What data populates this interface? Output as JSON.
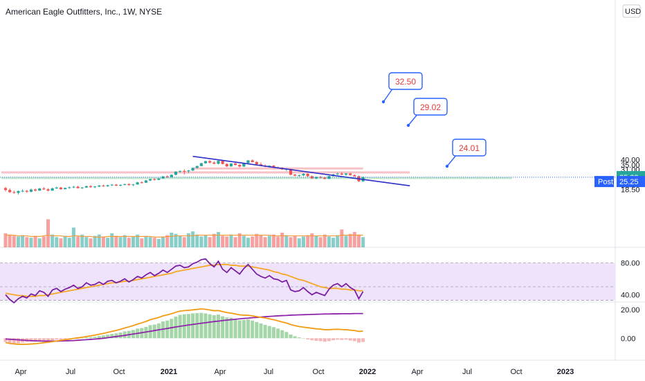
{
  "header": {
    "symbol_title": "American Eagle Outfitters, Inc., 1W, NYSE",
    "currency": "USD"
  },
  "price_axis": {
    "ticks": [
      {
        "value": 40.0,
        "label": "40.00"
      },
      {
        "value": 35.0,
        "label": "35.00"
      },
      {
        "value": 31.0,
        "label": "31.00"
      },
      {
        "value": 27.0,
        "label": "27.00"
      },
      {
        "value": 21.0,
        "label": "21.00"
      },
      {
        "value": 18.5,
        "label": "18.50"
      }
    ]
  },
  "rsi_axis": {
    "ticks": [
      {
        "value": 80,
        "label": "80.00"
      },
      {
        "value": 40,
        "label": "40.00"
      }
    ]
  },
  "macd_axis": {
    "ticks": [
      {
        "value": 20,
        "label": "20.00"
      },
      {
        "value": 0,
        "label": "0.00"
      }
    ]
  },
  "time_axis": {
    "labels": [
      {
        "label": "Apr",
        "bold": false
      },
      {
        "label": "Jul",
        "bold": false
      },
      {
        "label": "Oct",
        "bold": false
      },
      {
        "label": "2021",
        "bold": true
      },
      {
        "label": "Apr",
        "bold": false
      },
      {
        "label": "Jul",
        "bold": false
      },
      {
        "label": "Oct",
        "bold": false
      },
      {
        "label": "2022",
        "bold": true
      },
      {
        "label": "Apr",
        "bold": false
      },
      {
        "label": "Jul",
        "bold": false
      },
      {
        "label": "Oct",
        "bold": false
      },
      {
        "label": "2023",
        "bold": true
      }
    ]
  },
  "last_price": {
    "value": 25.32,
    "label": "25.32",
    "color": "#26a69a"
  },
  "post_market": {
    "tag": "Post",
    "value": 25.25,
    "label": "25.25",
    "color": "#2962ff"
  },
  "callouts": [
    {
      "label": "32.50",
      "value": 32.5
    },
    {
      "label": "29.02",
      "value": 29.02
    },
    {
      "label": "24.01",
      "value": 24.01
    }
  ],
  "colors": {
    "up": "#26a69a",
    "down": "#ef5350",
    "trendline": "#2d2dc8",
    "resistance_zone": "#f7b6be",
    "support_zone": "#b9e4c3",
    "volume_ma": "#f59c3c",
    "rsi_line": "#7b1fa2",
    "rsi_ma": "#f5a623",
    "rsi_band": "#efe3fb",
    "macd_line": "#f29b12",
    "signal_line": "#8e24aa",
    "hist_pos": "#a5d6a7",
    "hist_neg": "#f4b6b6",
    "callout_text": "#e53935",
    "callout_border": "#2962ff"
  },
  "chart_data": {
    "type": "candlestick",
    "interval": "1W",
    "price_range": [
      16.8,
      44.5
    ],
    "candles": [
      {
        "o": 19.1,
        "h": 19.8,
        "l": 17.6,
        "c": 18.2
      },
      {
        "o": 18.2,
        "h": 19.0,
        "l": 16.9,
        "c": 17.2
      },
      {
        "o": 17.2,
        "h": 17.9,
        "l": 16.5,
        "c": 16.9
      },
      {
        "o": 16.9,
        "h": 18.0,
        "l": 16.2,
        "c": 17.7
      },
      {
        "o": 17.7,
        "h": 18.5,
        "l": 17.2,
        "c": 17.8
      },
      {
        "o": 17.8,
        "h": 18.2,
        "l": 16.9,
        "c": 17.4
      },
      {
        "o": 17.4,
        "h": 18.8,
        "l": 17.1,
        "c": 18.4
      },
      {
        "o": 18.4,
        "h": 18.9,
        "l": 17.5,
        "c": 17.9
      },
      {
        "o": 17.9,
        "h": 19.2,
        "l": 17.8,
        "c": 18.9
      },
      {
        "o": 18.9,
        "h": 19.6,
        "l": 18.2,
        "c": 18.5
      },
      {
        "o": 18.5,
        "h": 19.1,
        "l": 17.6,
        "c": 17.9
      },
      {
        "o": 17.9,
        "h": 19.3,
        "l": 17.8,
        "c": 19.0
      },
      {
        "o": 19.0,
        "h": 19.8,
        "l": 18.7,
        "c": 19.4
      },
      {
        "o": 19.4,
        "h": 19.7,
        "l": 18.3,
        "c": 18.6
      },
      {
        "o": 18.6,
        "h": 19.4,
        "l": 18.4,
        "c": 19.2
      },
      {
        "o": 19.2,
        "h": 19.9,
        "l": 18.8,
        "c": 19.5
      },
      {
        "o": 19.5,
        "h": 20.2,
        "l": 19.1,
        "c": 19.8
      },
      {
        "o": 19.8,
        "h": 20.3,
        "l": 18.9,
        "c": 19.1
      },
      {
        "o": 19.1,
        "h": 19.7,
        "l": 18.7,
        "c": 19.4
      },
      {
        "o": 19.4,
        "h": 20.4,
        "l": 19.2,
        "c": 20.1
      },
      {
        "o": 20.1,
        "h": 20.6,
        "l": 19.3,
        "c": 19.6
      },
      {
        "o": 19.6,
        "h": 20.2,
        "l": 19.1,
        "c": 19.9
      },
      {
        "o": 19.9,
        "h": 20.7,
        "l": 19.6,
        "c": 20.4
      },
      {
        "o": 20.4,
        "h": 20.9,
        "l": 19.8,
        "c": 20.1
      },
      {
        "o": 20.1,
        "h": 20.8,
        "l": 19.7,
        "c": 20.6
      },
      {
        "o": 20.6,
        "h": 21.2,
        "l": 20.2,
        "c": 20.9
      },
      {
        "o": 20.9,
        "h": 21.3,
        "l": 20.1,
        "c": 20.4
      },
      {
        "o": 20.4,
        "h": 21.0,
        "l": 20.0,
        "c": 20.8
      },
      {
        "o": 20.8,
        "h": 21.4,
        "l": 20.5,
        "c": 21.2
      },
      {
        "o": 21.2,
        "h": 21.6,
        "l": 20.3,
        "c": 20.7
      },
      {
        "o": 20.7,
        "h": 21.3,
        "l": 20.2,
        "c": 21.0
      },
      {
        "o": 21.0,
        "h": 22.5,
        "l": 20.8,
        "c": 22.2
      },
      {
        "o": 22.2,
        "h": 22.8,
        "l": 21.6,
        "c": 22.0
      },
      {
        "o": 22.0,
        "h": 23.6,
        "l": 21.8,
        "c": 23.3
      },
      {
        "o": 23.3,
        "h": 24.4,
        "l": 22.9,
        "c": 24.1
      },
      {
        "o": 24.1,
        "h": 24.7,
        "l": 23.3,
        "c": 23.7
      },
      {
        "o": 23.7,
        "h": 24.8,
        "l": 23.5,
        "c": 24.6
      },
      {
        "o": 24.6,
        "h": 26.2,
        "l": 24.3,
        "c": 25.9
      },
      {
        "o": 25.9,
        "h": 26.5,
        "l": 25.0,
        "c": 25.5
      },
      {
        "o": 25.5,
        "h": 27.3,
        "l": 25.2,
        "c": 27.0
      },
      {
        "o": 27.0,
        "h": 29.6,
        "l": 26.7,
        "c": 29.3
      },
      {
        "o": 29.3,
        "h": 30.3,
        "l": 28.4,
        "c": 29.8
      },
      {
        "o": 29.8,
        "h": 31.0,
        "l": 27.3,
        "c": 29.6
      },
      {
        "o": 29.6,
        "h": 30.6,
        "l": 28.2,
        "c": 30.2
      },
      {
        "o": 30.2,
        "h": 32.6,
        "l": 29.8,
        "c": 32.3
      },
      {
        "o": 32.3,
        "h": 34.2,
        "l": 31.8,
        "c": 33.9
      },
      {
        "o": 33.9,
        "h": 36.8,
        "l": 33.6,
        "c": 36.5
      },
      {
        "o": 36.5,
        "h": 38.9,
        "l": 35.9,
        "c": 38.5
      },
      {
        "o": 38.5,
        "h": 39.6,
        "l": 36.3,
        "c": 37.1
      },
      {
        "o": 37.1,
        "h": 38.4,
        "l": 35.6,
        "c": 36.0
      },
      {
        "o": 36.0,
        "h": 39.2,
        "l": 35.4,
        "c": 38.8
      },
      {
        "o": 38.8,
        "h": 39.4,
        "l": 35.3,
        "c": 35.8
      },
      {
        "o": 35.8,
        "h": 36.4,
        "l": 33.1,
        "c": 33.6
      },
      {
        "o": 33.6,
        "h": 36.6,
        "l": 33.3,
        "c": 36.2
      },
      {
        "o": 36.2,
        "h": 37.4,
        "l": 34.4,
        "c": 34.9
      },
      {
        "o": 34.9,
        "h": 35.7,
        "l": 32.8,
        "c": 33.5
      },
      {
        "o": 33.5,
        "h": 37.0,
        "l": 33.2,
        "c": 36.7
      },
      {
        "o": 36.7,
        "h": 39.6,
        "l": 36.3,
        "c": 39.3
      },
      {
        "o": 39.3,
        "h": 40.2,
        "l": 37.2,
        "c": 37.6
      },
      {
        "o": 37.6,
        "h": 38.6,
        "l": 35.0,
        "c": 35.5
      },
      {
        "o": 35.5,
        "h": 37.2,
        "l": 33.7,
        "c": 34.1
      },
      {
        "o": 34.1,
        "h": 35.4,
        "l": 32.9,
        "c": 33.4
      },
      {
        "o": 33.4,
        "h": 34.6,
        "l": 32.6,
        "c": 34.2
      },
      {
        "o": 34.2,
        "h": 34.8,
        "l": 32.1,
        "c": 32.7
      },
      {
        "o": 32.7,
        "h": 33.4,
        "l": 31.9,
        "c": 32.4
      },
      {
        "o": 32.4,
        "h": 32.9,
        "l": 30.6,
        "c": 31.1
      },
      {
        "o": 31.1,
        "h": 31.8,
        "l": 29.6,
        "c": 31.4
      },
      {
        "o": 31.4,
        "h": 31.6,
        "l": 26.6,
        "c": 27.1
      },
      {
        "o": 27.1,
        "h": 27.6,
        "l": 26.0,
        "c": 26.4
      },
      {
        "o": 26.4,
        "h": 27.1,
        "l": 25.8,
        "c": 26.6
      },
      {
        "o": 26.6,
        "h": 28.1,
        "l": 26.1,
        "c": 27.7
      },
      {
        "o": 27.7,
        "h": 28.2,
        "l": 25.7,
        "c": 26.0
      },
      {
        "o": 26.0,
        "h": 26.5,
        "l": 24.2,
        "c": 24.6
      },
      {
        "o": 24.6,
        "h": 25.9,
        "l": 24.1,
        "c": 25.5
      },
      {
        "o": 25.5,
        "h": 26.1,
        "l": 24.6,
        "c": 25.0
      },
      {
        "o": 25.0,
        "h": 25.4,
        "l": 24.0,
        "c": 24.3
      },
      {
        "o": 24.3,
        "h": 26.4,
        "l": 24.1,
        "c": 26.1
      },
      {
        "o": 26.1,
        "h": 27.6,
        "l": 25.8,
        "c": 27.3
      },
      {
        "o": 27.3,
        "h": 28.5,
        "l": 26.9,
        "c": 27.8
      },
      {
        "o": 27.8,
        "h": 28.9,
        "l": 26.8,
        "c": 27.1
      },
      {
        "o": 27.1,
        "h": 28.2,
        "l": 26.3,
        "c": 27.9
      },
      {
        "o": 27.9,
        "h": 28.4,
        "l": 26.4,
        "c": 26.8
      },
      {
        "o": 26.8,
        "h": 27.3,
        "l": 25.6,
        "c": 26.0
      },
      {
        "o": 26.0,
        "h": 26.5,
        "l": 22.4,
        "c": 22.8
      },
      {
        "o": 22.8,
        "h": 25.8,
        "l": 22.5,
        "c": 25.32
      }
    ],
    "volume_range": [
      0,
      100
    ],
    "volumes": [
      22,
      20,
      18,
      17,
      19,
      16,
      15,
      18,
      14,
      17,
      44,
      20,
      16,
      14,
      18,
      15,
      31,
      17,
      20,
      16,
      14,
      18,
      20,
      17,
      15,
      22,
      18,
      16,
      19,
      15,
      17,
      20,
      14,
      18,
      16,
      15,
      13,
      17,
      19,
      23,
      21,
      18,
      16,
      22,
      25,
      20,
      17,
      19,
      16,
      21,
      24,
      18,
      17,
      20,
      16,
      22,
      18,
      15,
      17,
      21,
      19,
      16,
      18,
      20,
      17,
      23,
      19,
      16,
      18,
      14,
      17,
      19,
      22,
      18,
      16,
      20,
      17,
      15,
      19,
      28,
      18,
      21,
      24,
      20,
      16
    ],
    "volume_ma": [
      19,
      19,
      19,
      18,
      18,
      18,
      17,
      17,
      17,
      18,
      19,
      18,
      18,
      18,
      17,
      17,
      18,
      18,
      17,
      17,
      17,
      16,
      16,
      16,
      17,
      17,
      17,
      17,
      17,
      17,
      17,
      17,
      17,
      17,
      17,
      16,
      16,
      16,
      17,
      17,
      18,
      18,
      18,
      18,
      18,
      19,
      19,
      19,
      19,
      19,
      19,
      19,
      19,
      19,
      19,
      19,
      19,
      19,
      19,
      19,
      19,
      19,
      19,
      18,
      18,
      18,
      18,
      18,
      18,
      18,
      18,
      18,
      18,
      18,
      18,
      18,
      18,
      18,
      18,
      19,
      19,
      19,
      19,
      19,
      19
    ],
    "rsi_range": [
      10,
      95
    ],
    "rsi": [
      40,
      34,
      30,
      35,
      38,
      36,
      41,
      39,
      45,
      43,
      38,
      46,
      48,
      44,
      47,
      49,
      52,
      48,
      50,
      55,
      52,
      53,
      56,
      53,
      57,
      58,
      55,
      57,
      60,
      56,
      59,
      63,
      61,
      65,
      68,
      64,
      67,
      71,
      68,
      72,
      76,
      77,
      74,
      75,
      79,
      81,
      84,
      85,
      79,
      75,
      82,
      72,
      68,
      74,
      70,
      66,
      73,
      78,
      72,
      66,
      63,
      61,
      64,
      60,
      59,
      56,
      58,
      46,
      44,
      45,
      49,
      44,
      40,
      43,
      41,
      39,
      47,
      52,
      54,
      50,
      54,
      49,
      46,
      35,
      44
    ],
    "rsi_ma": [
      42,
      41,
      40,
      39,
      39,
      38,
      38,
      38,
      39,
      39,
      40,
      41,
      42,
      43,
      44,
      45,
      46,
      47,
      48,
      49,
      50,
      51,
      52,
      53,
      54,
      55,
      55,
      56,
      57,
      57,
      58,
      59,
      60,
      61,
      62,
      63,
      64,
      65,
      66,
      67,
      69,
      70,
      71,
      72,
      73,
      74,
      75,
      76,
      77,
      77,
      78,
      78,
      78,
      77,
      77,
      76,
      76,
      76,
      75,
      74,
      73,
      72,
      71,
      69,
      68,
      66,
      65,
      63,
      61,
      59,
      58,
      56,
      54,
      52,
      50,
      49,
      48,
      48,
      48,
      47,
      47,
      46,
      46,
      45,
      45
    ],
    "macd_range": [
      -6,
      24
    ],
    "macd_hist": [
      -2.5,
      -3.2,
      -3.8,
      -3.5,
      -3.0,
      -2.6,
      -2.2,
      -2.4,
      -1.8,
      -1.5,
      -2.0,
      -1.4,
      -1.0,
      -1.2,
      -0.8,
      -0.5,
      -0.2,
      -0.4,
      0.1,
      0.6,
      0.8,
      1.0,
      1.6,
      2.0,
      2.5,
      3.0,
      3.4,
      4.0,
      4.8,
      5.2,
      5.8,
      6.8,
      7.2,
      8.0,
      9.2,
      9.6,
      10.4,
      11.8,
      12.4,
      13.6,
      15.2,
      16.4,
      16.8,
      17.0,
      17.4,
      17.6,
      17.8,
      17.4,
      16.8,
      16.2,
      16.6,
      15.4,
      14.6,
      14.4,
      13.6,
      12.6,
      12.8,
      13.2,
      12.4,
      11.4,
      10.4,
      9.4,
      8.6,
      7.8,
      6.8,
      5.6,
      4.4,
      2.6,
      1.4,
      0.6,
      0.0,
      -0.8,
      -1.4,
      -1.8,
      -2.0,
      -2.4,
      -2.0,
      -1.4,
      -1.0,
      -1.2,
      -1.0,
      -1.6,
      -2.0,
      -3.0,
      -2.6
    ],
    "macd_line": [
      -3.0,
      -3.6,
      -4.0,
      -4.2,
      -4.3,
      -4.2,
      -4.0,
      -3.8,
      -3.5,
      -3.1,
      -2.8,
      -2.4,
      -1.9,
      -1.5,
      -1.0,
      -0.6,
      -0.1,
      0.3,
      0.7,
      1.2,
      1.7,
      2.2,
      2.8,
      3.4,
      4.1,
      4.8,
      5.5,
      6.3,
      7.2,
      8.0,
      8.9,
      9.9,
      10.8,
      11.8,
      13.0,
      13.8,
      14.6,
      15.7,
      16.4,
      17.2,
      18.2,
      19.0,
      19.4,
      19.6,
      19.9,
      20.2,
      20.6,
      20.3,
      19.8,
      19.3,
      19.4,
      18.7,
      18.0,
      17.6,
      17.0,
      16.4,
      16.2,
      16.1,
      15.7,
      15.2,
      14.7,
      14.2,
      13.6,
      13.0,
      12.2,
      11.4,
      10.7,
      9.6,
      8.8,
      8.2,
      7.8,
      7.4,
      7.0,
      6.6,
      6.4,
      6.0,
      6.0,
      6.2,
      6.3,
      6.1,
      6.0,
      5.7,
      5.4,
      4.8,
      5.0
    ],
    "signal_line": [
      -0.5,
      -0.7,
      -0.9,
      -1.1,
      -1.3,
      -1.5,
      -1.7,
      -1.8,
      -1.9,
      -2.0,
      -2.0,
      -2.0,
      -2.0,
      -1.9,
      -1.8,
      -1.7,
      -1.6,
      -1.4,
      -1.2,
      -1.0,
      -0.8,
      -0.6,
      -0.3,
      0.0,
      0.4,
      0.8,
      1.2,
      1.6,
      2.0,
      2.5,
      3.0,
      3.4,
      3.9,
      4.4,
      4.9,
      5.4,
      5.9,
      6.4,
      6.9,
      7.4,
      7.9,
      8.4,
      8.8,
      9.3,
      9.7,
      10.1,
      10.5,
      10.9,
      11.3,
      11.7,
      12.0,
      12.4,
      12.7,
      13.0,
      13.3,
      13.6,
      13.9,
      14.1,
      14.4,
      14.6,
      14.9,
      15.1,
      15.3,
      15.5,
      15.7,
      15.9,
      16.0,
      16.2,
      16.3,
      16.4,
      16.5,
      16.6,
      16.7,
      16.8,
      16.9,
      17.0,
      17.0,
      17.1,
      17.1,
      17.2,
      17.2,
      17.2,
      17.3,
      17.3,
      17.3
    ],
    "trendline": {
      "start": {
        "index": 44,
        "price": 43.6
      },
      "end": {
        "index": 95,
        "price": 20.3
      }
    },
    "zones": [
      {
        "kind": "resistance",
        "from_index": 44,
        "to_index": 84,
        "low": 32.3,
        "high": 32.7
      },
      {
        "kind": "resistance",
        "from_index": -1,
        "to_index": 95,
        "low": 29.0,
        "high": 29.5
      },
      {
        "kind": "support",
        "from_index": -1,
        "to_index": 119,
        "low": 24.8,
        "high": 25.5
      }
    ]
  }
}
